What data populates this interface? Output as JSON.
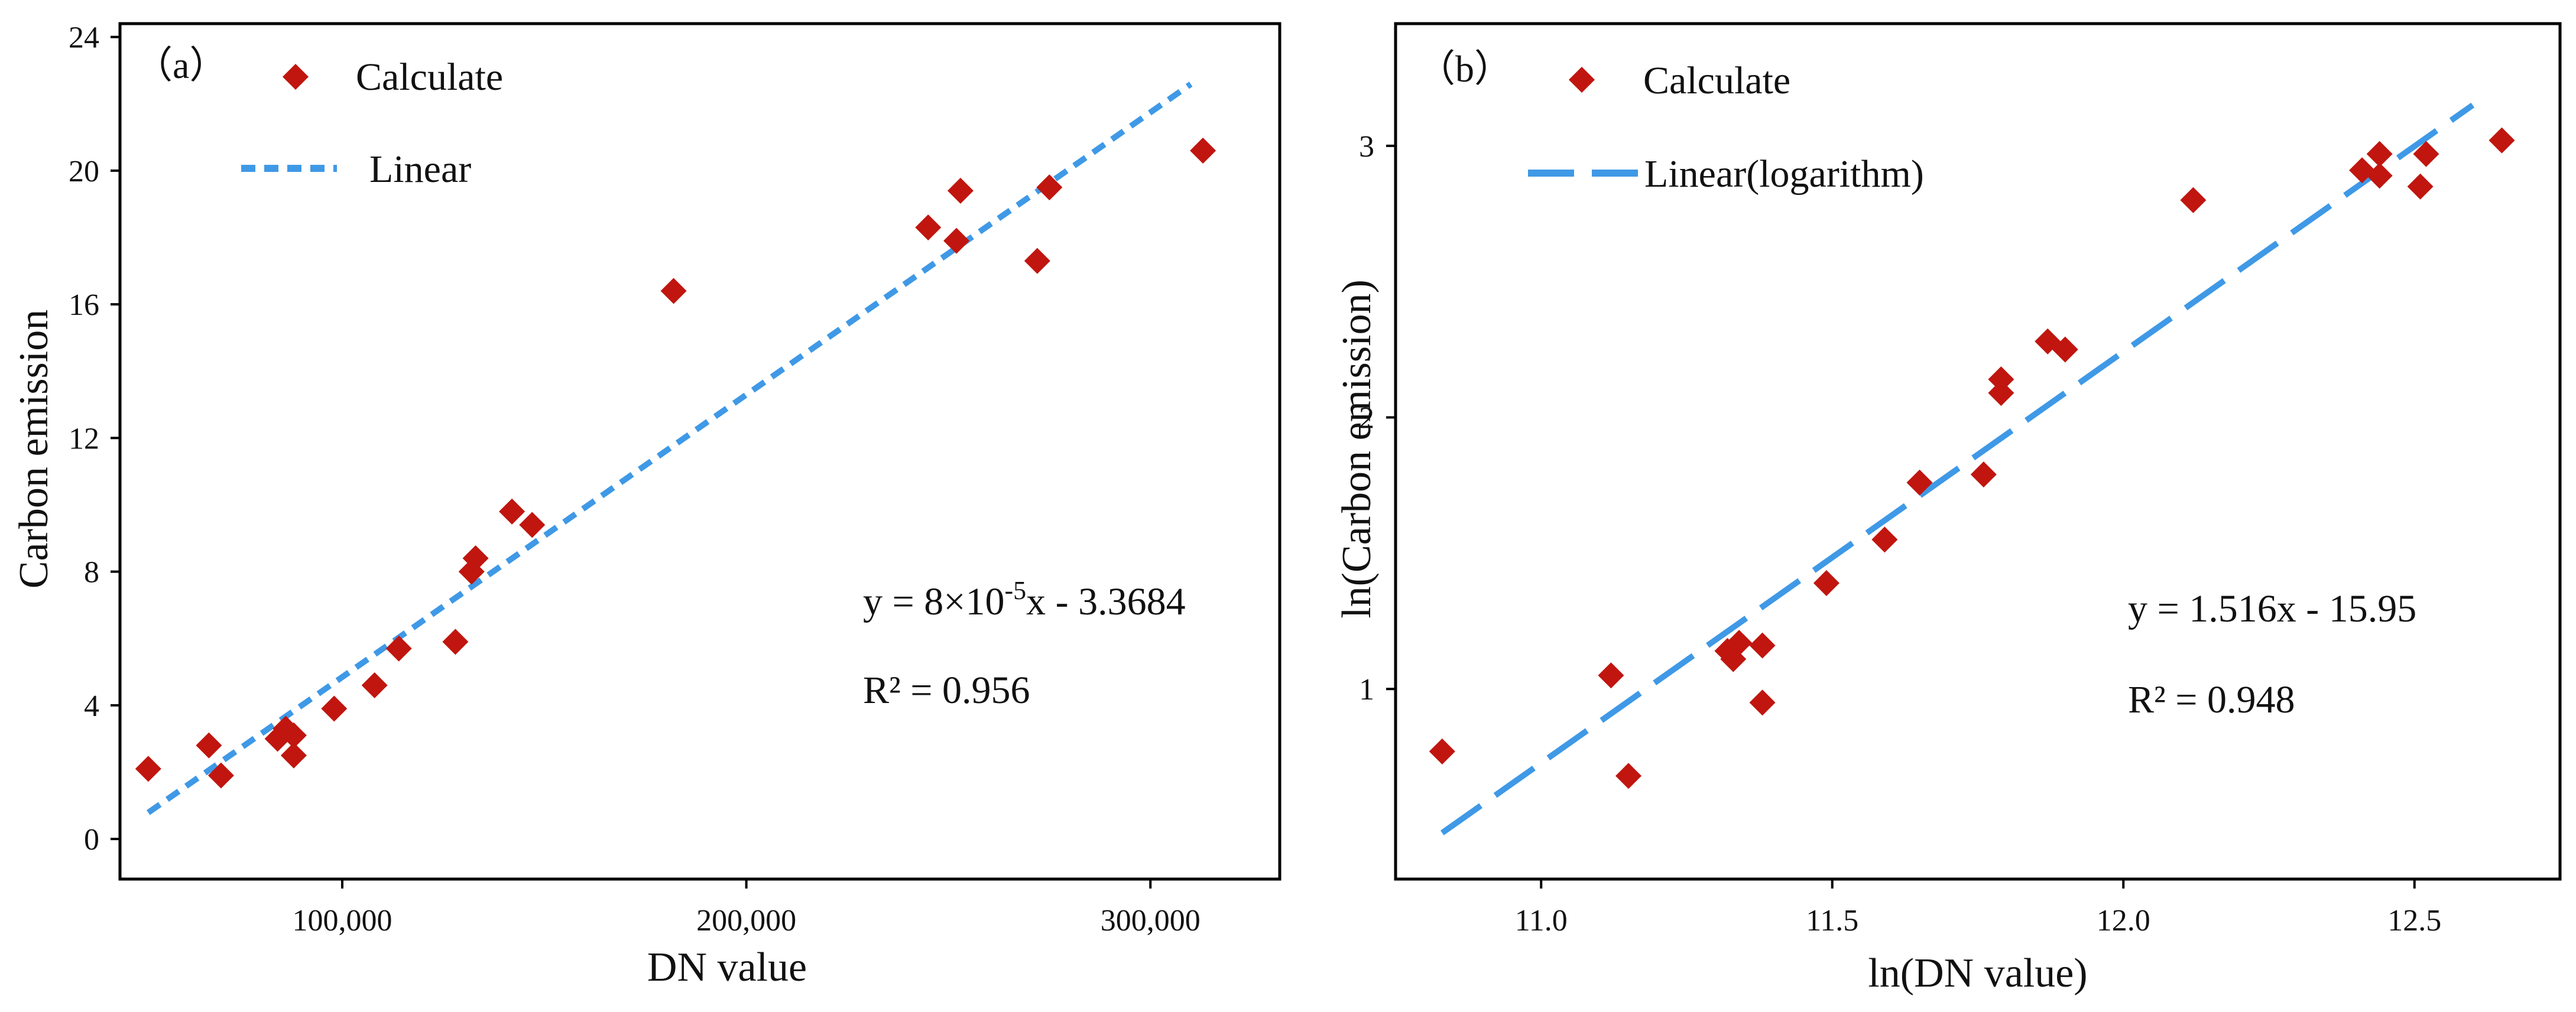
{
  "chart_data": [
    {
      "type": "scatter",
      "panel_label": "（a）",
      "xlabel": "DN value",
      "ylabel": "Carbon emission",
      "xlim": [
        45000,
        332000
      ],
      "ylim": [
        -1.2,
        24.4
      ],
      "x_ticks": [
        100000,
        200000,
        300000
      ],
      "x_tick_labels": [
        "100,000",
        "200,000",
        "300,000"
      ],
      "y_ticks": [
        0,
        4,
        8,
        12,
        16,
        20,
        24
      ],
      "y_tick_labels": [
        "0",
        "4",
        "8",
        "12",
        "16",
        "20",
        "24"
      ],
      "grid": false,
      "legend": {
        "position": "top-left",
        "entries": [
          {
            "label": "Calculate",
            "marker": "diamond",
            "color": "#c0160f"
          },
          {
            "label": "Linear",
            "marker": "short-dash",
            "color": "#3f99e6"
          }
        ]
      },
      "series": [
        {
          "name": "Calculate",
          "marker": "diamond",
          "color": "#c0160f",
          "x": [
            52000,
            67000,
            70000,
            84000,
            86000,
            88000,
            88000,
            98000,
            108000,
            114000,
            128000,
            132000,
            133000,
            142000,
            147000,
            182000,
            245000,
            252000,
            253000,
            272000,
            275000,
            313000
          ],
          "y": [
            2.1,
            2.8,
            1.9,
            3.0,
            3.3,
            3.1,
            2.5,
            3.9,
            4.6,
            5.7,
            5.9,
            8.0,
            8.4,
            9.8,
            9.4,
            16.4,
            18.3,
            17.9,
            19.4,
            17.3,
            19.5,
            20.6
          ]
        },
        {
          "name": "Linear",
          "line": "short-dash",
          "color": "#3f99e6",
          "x": [
            52000,
            310000
          ],
          "y": [
            0.79,
            22.59
          ]
        }
      ],
      "annotations": [
        {
          "text_parts": [
            "y = 8×10",
            "-5",
            "x - 3.3684"
          ],
          "style": "superscript-middle"
        },
        {
          "text": "R² = 0.956"
        }
      ]
    },
    {
      "type": "scatter",
      "panel_label": "（b）",
      "xlabel": "ln(DN value)",
      "ylabel": "ln(Carbon emission)",
      "xlim": [
        10.75,
        12.75
      ],
      "ylim": [
        0.3,
        3.45
      ],
      "x_ticks": [
        11.0,
        11.5,
        12.0,
        12.5
      ],
      "x_tick_labels": [
        "11.0",
        "11.5",
        "12.0",
        "12.5"
      ],
      "y_ticks": [
        1,
        2,
        3
      ],
      "y_tick_labels": [
        "1",
        "2",
        "3"
      ],
      "grid": false,
      "legend": {
        "position": "top-left",
        "entries": [
          {
            "label": "Calculate",
            "marker": "diamond",
            "color": "#c0160f"
          },
          {
            "label": "Linear(logarithm)",
            "marker": "long-dash",
            "color": "#3f99e6"
          }
        ]
      },
      "series": [
        {
          "name": "Calculate",
          "marker": "diamond",
          "color": "#c0160f",
          "x": [
            10.83,
            11.12,
            11.15,
            11.32,
            11.33,
            11.34,
            11.38,
            11.38,
            11.49,
            11.59,
            11.65,
            11.76,
            11.79,
            11.79,
            11.87,
            11.9,
            12.12,
            12.41,
            12.44,
            12.44,
            12.51,
            12.52,
            12.65
          ],
          "y": [
            0.77,
            1.05,
            0.68,
            1.14,
            1.11,
            1.17,
            1.16,
            0.95,
            1.39,
            1.55,
            1.76,
            1.79,
            2.09,
            2.14,
            2.28,
            2.25,
            2.8,
            2.91,
            2.89,
            2.97,
            2.85,
            2.97,
            3.02
          ]
        },
        {
          "name": "Linear(logarithm)",
          "line": "long-dash",
          "color": "#3f99e6",
          "x": [
            10.83,
            12.6
          ],
          "y": [
            0.47,
            3.15
          ]
        }
      ],
      "annotations": [
        {
          "text": "y = 1.516x - 15.95"
        },
        {
          "text": "R² = 0.948"
        }
      ]
    }
  ]
}
